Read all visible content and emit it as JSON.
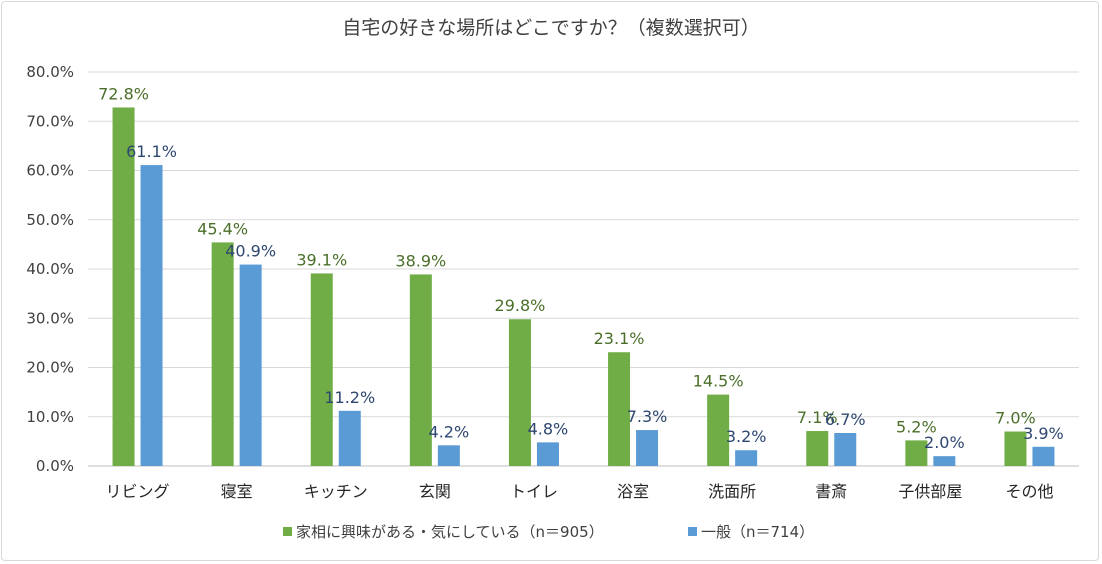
{
  "chart_data": {
    "type": "bar",
    "title": "自宅の好きな場所はどこですか？（複数選択可）",
    "categories": [
      "リビング",
      "寝室",
      "キッチン",
      "玄関",
      "トイレ",
      "浴室",
      "洗面所",
      "書斎",
      "子供部屋",
      "その他"
    ],
    "series": [
      {
        "name": "家相に興味がある・気にしている（n＝905）",
        "color": "#70ad47",
        "label_color": "#4b6f2a",
        "values": [
          72.8,
          45.4,
          39.1,
          38.9,
          29.8,
          23.1,
          14.5,
          7.1,
          5.2,
          7.0
        ],
        "labels": [
          "72.8%",
          "45.4%",
          "39.1%",
          "38.9%",
          "29.8%",
          "23.1%",
          "14.5%",
          "7.1%",
          "5.2%",
          "7.0%"
        ]
      },
      {
        "name": "一般（n＝714）",
        "color": "#5b9bd5",
        "label_color": "#2e4770",
        "values": [
          61.1,
          40.9,
          11.2,
          4.2,
          4.8,
          7.3,
          3.2,
          6.7,
          2.0,
          3.9
        ],
        "labels": [
          "61.1%",
          "40.9%",
          "11.2%",
          "4.2%",
          "4.8%",
          "7.3%",
          "3.2%",
          "6.7%",
          "2.0%",
          "3.9%"
        ]
      }
    ],
    "ylim": [
      0,
      80
    ],
    "yticks": [
      "0.0%",
      "10.0%",
      "20.0%",
      "30.0%",
      "40.0%",
      "50.0%",
      "60.0%",
      "70.0%",
      "80.0%"
    ],
    "ytick_values": [
      0,
      10,
      20,
      30,
      40,
      50,
      60,
      70,
      80
    ],
    "xlabel": "",
    "ylabel": "",
    "grid": true,
    "legend_position": "bottom"
  }
}
